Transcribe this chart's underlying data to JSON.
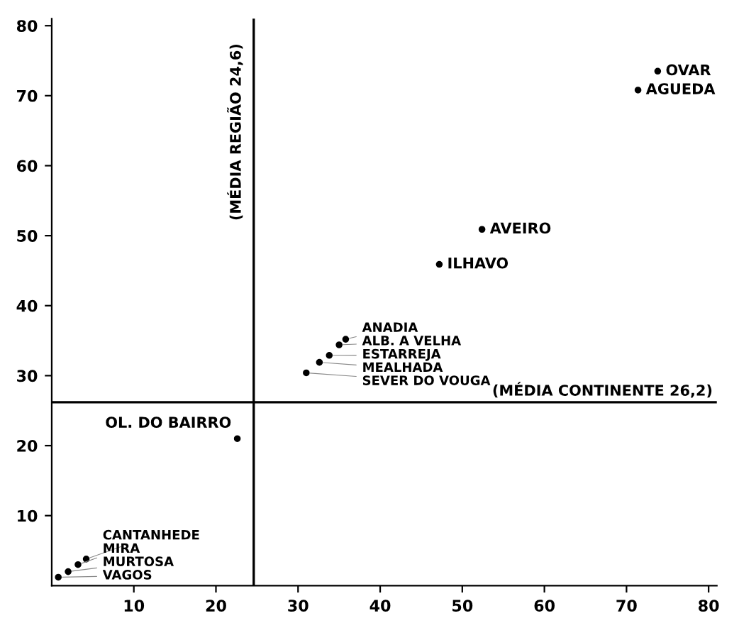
{
  "chart_data": {
    "type": "scatter",
    "series": [
      {
        "color": "#000000",
        "x": [
          73.8,
          71.4,
          52.4,
          47.2,
          35.8,
          35.0,
          33.8,
          32.6,
          31.0,
          22.6,
          4.2,
          3.2,
          2.0,
          0.8
        ],
        "values": [
          73.5,
          70.8,
          50.9,
          45.9,
          35.2,
          34.4,
          32.9,
          31.9,
          30.4,
          21.0,
          3.8,
          3.0,
          2.0,
          1.2
        ]
      }
    ],
    "annotations": [
      {
        "text": "OVAR",
        "x": 73.8,
        "y": 73.5
      },
      {
        "text": "AGUEDA",
        "x": 71.4,
        "y": 70.8
      },
      {
        "text": "AVEIRO",
        "x": 52.4,
        "y": 50.9
      },
      {
        "text": "ILHAVO",
        "x": 47.2,
        "y": 45.9
      },
      {
        "text": "ANADIA",
        "x": 35.8,
        "y": 35.2
      },
      {
        "text": "ALB. A VELHA",
        "x": 35.0,
        "y": 34.4
      },
      {
        "text": "ESTARREJA",
        "x": 33.8,
        "y": 32.9
      },
      {
        "text": "MEALHADA",
        "x": 32.6,
        "y": 31.9
      },
      {
        "text": "SEVER DO VOUGA",
        "x": 31.0,
        "y": 30.4
      },
      {
        "text": "OL. DO BAIRRO",
        "x": 22.6,
        "y": 21.0
      },
      {
        "text": "CANTANHEDE",
        "x": 4.2,
        "y": 3.8
      },
      {
        "text": "MIRA",
        "x": 3.2,
        "y": 3.0
      },
      {
        "text": "MURTOSA",
        "x": 2.0,
        "y": 2.0
      },
      {
        "text": "VAGOS",
        "x": 0.8,
        "y": 1.2
      }
    ],
    "ref_lines": [
      {
        "axis": "x",
        "value": 24.6,
        "label": "(MÉDIA REGIÃO 24,6)",
        "color": "#000000",
        "line_style": "solid"
      },
      {
        "axis": "y",
        "value": 26.2,
        "label": "(MÉDIA CONTINENTE 26,2)",
        "color": "#000000",
        "line_style": "solid"
      }
    ],
    "xlim": [
      0,
      81
    ],
    "ylim": [
      0,
      81
    ],
    "xticks": [
      10,
      20,
      30,
      40,
      50,
      60,
      70,
      80
    ],
    "yticks": [
      10,
      20,
      30,
      40,
      50,
      60,
      70,
      80
    ],
    "grid": false,
    "legend": false,
    "marker": "circle"
  }
}
